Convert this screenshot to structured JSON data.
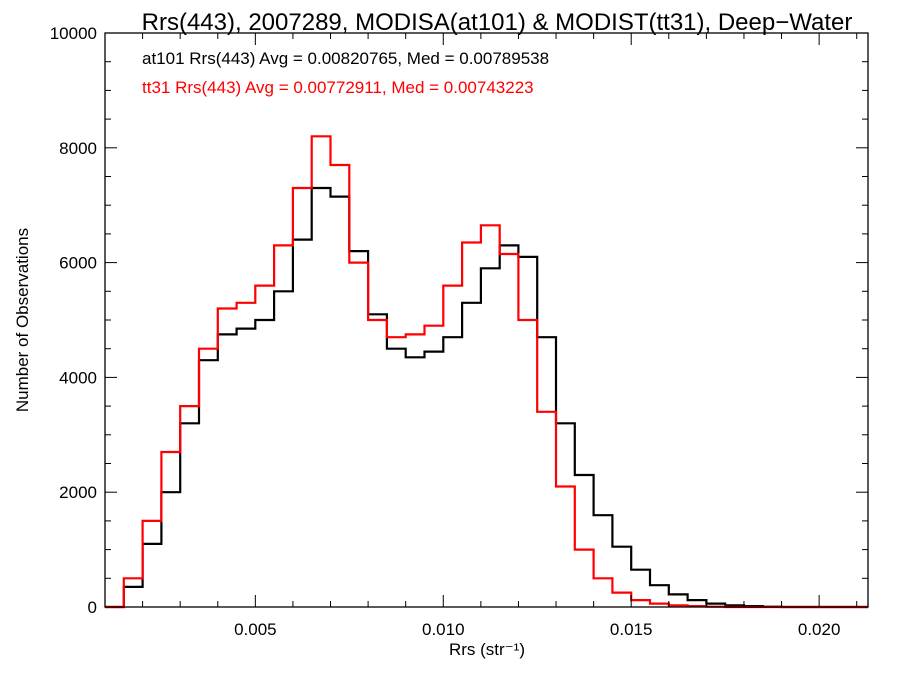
{
  "chart_data": {
    "type": "line",
    "title": "Rrs(443), 2007289, MODISA(at101) & MODIST(tt31), Deep−Water",
    "xlabel": "Rrs (str⁻¹)",
    "ylabel": "Number of Observations",
    "xlim": [
      0.001,
      0.0213
    ],
    "ylim": [
      0,
      10000
    ],
    "x_ticks": [
      {
        "value": 0.005,
        "label": "0.005"
      },
      {
        "value": 0.01,
        "label": "0.010"
      },
      {
        "value": 0.015,
        "label": "0.015"
      },
      {
        "value": 0.02,
        "label": "0.020"
      }
    ],
    "y_ticks": [
      {
        "value": 0,
        "label": "0"
      },
      {
        "value": 2000,
        "label": "2000"
      },
      {
        "value": 4000,
        "label": "4000"
      },
      {
        "value": 6000,
        "label": "6000"
      },
      {
        "value": 8000,
        "label": "8000"
      },
      {
        "value": 10000,
        "label": "10000"
      }
    ],
    "grid": false,
    "legend_placement": "top-left",
    "series": [
      {
        "text": "at101 Rrs(443) Avg = 0.00820765, Med = 0.00789538",
        "color": "#000000",
        "x": [
          0.001,
          0.0015,
          0.002,
          0.0025,
          0.003,
          0.0035,
          0.004,
          0.0045,
          0.005,
          0.0055,
          0.006,
          0.0065,
          0.007,
          0.0075,
          0.008,
          0.0085,
          0.009,
          0.0095,
          0.01,
          0.0105,
          0.011,
          0.0115,
          0.012,
          0.0125,
          0.013,
          0.0135,
          0.014,
          0.0145,
          0.015,
          0.0155,
          0.016,
          0.0165,
          0.017,
          0.0175,
          0.018,
          0.0185,
          0.019,
          0.02,
          0.0213
        ],
        "values": [
          0,
          350,
          1100,
          2000,
          3200,
          4300,
          4750,
          4850,
          5000,
          5500,
          6400,
          7300,
          7150,
          6200,
          5100,
          4500,
          4350,
          4450,
          4700,
          5300,
          5900,
          6300,
          6100,
          4700,
          3200,
          2300,
          1600,
          1050,
          650,
          380,
          220,
          120,
          60,
          30,
          15,
          5,
          0,
          0,
          0
        ]
      },
      {
        "text": "tt31 Rrs(443) Avg = 0.00772911, Med = 0.00743223",
        "color": "#ff0000",
        "x": [
          0.001,
          0.0015,
          0.002,
          0.0025,
          0.003,
          0.0035,
          0.004,
          0.0045,
          0.005,
          0.0055,
          0.006,
          0.0065,
          0.007,
          0.0075,
          0.008,
          0.0085,
          0.009,
          0.0095,
          0.01,
          0.0105,
          0.011,
          0.0115,
          0.012,
          0.0125,
          0.013,
          0.0135,
          0.014,
          0.0145,
          0.015,
          0.0155,
          0.016,
          0.0165,
          0.017,
          0.0175,
          0.018,
          0.0185,
          0.019,
          0.02,
          0.0213
        ],
        "values": [
          0,
          500,
          1500,
          2700,
          3500,
          4500,
          5200,
          5300,
          5600,
          6300,
          7300,
          8200,
          7700,
          6000,
          5000,
          4700,
          4750,
          4900,
          5600,
          6350,
          6650,
          6150,
          5000,
          3400,
          2100,
          1000,
          500,
          250,
          120,
          60,
          30,
          15,
          5,
          0,
          0,
          0,
          0,
          0,
          0
        ]
      }
    ]
  }
}
